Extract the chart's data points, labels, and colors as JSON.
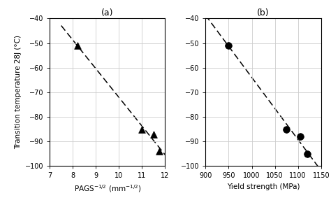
{
  "plot_a": {
    "title": "(a)",
    "x_data": [
      8.2,
      11.0,
      11.5,
      11.75
    ],
    "y_data": [
      -51,
      -85,
      -87,
      -94
    ],
    "xlabel": "PAGS$^{-1/2}$ (mm$^{-1/2}$)",
    "xlim": [
      7,
      12
    ],
    "xticks": [
      7,
      8,
      9,
      10,
      11,
      12
    ],
    "marker": "^",
    "marker_size": 7,
    "line_fit_x": [
      7.5,
      12.0
    ]
  },
  "plot_b": {
    "title": "(b)",
    "x_data": [
      950,
      1075,
      1105,
      1120
    ],
    "y_data": [
      -51,
      -85,
      -88,
      -95
    ],
    "xlabel": "Yield strength (MPa)",
    "xlim": [
      900,
      1150
    ],
    "xticks": [
      900,
      950,
      1000,
      1050,
      1100,
      1150
    ],
    "marker": "o",
    "marker_size": 7,
    "line_fit_x": [
      900,
      1150
    ]
  },
  "ylabel": "Transition temperature 28J (°C)",
  "ylim": [
    -100,
    -40
  ],
  "yticks": [
    -100,
    -90,
    -80,
    -70,
    -60,
    -50,
    -40
  ],
  "marker_color": "black",
  "line_color": "black",
  "background_color": "#ffffff",
  "grid_color": "#cccccc",
  "title_fontsize": 9,
  "label_fontsize": 7.5,
  "tick_fontsize": 7
}
